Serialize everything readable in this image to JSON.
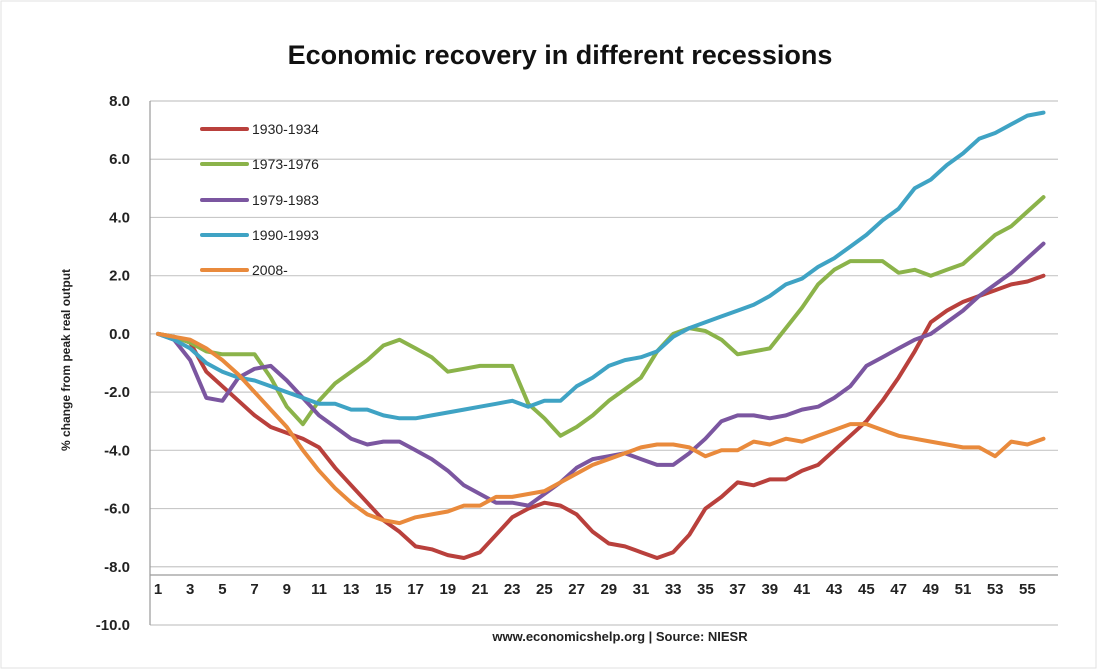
{
  "chart_data": {
    "type": "line",
    "title": "Economic recovery in different recessions",
    "ylabel": "% change from peak real output",
    "source": "www.economicshelp.org | Source: NIESR",
    "ylim": [
      -10,
      8
    ],
    "yticks": [
      8,
      6,
      4,
      2,
      0,
      -2,
      -4,
      -6,
      -8,
      -10
    ],
    "ytick_labels": [
      "8.0",
      "6.0",
      "4.0",
      "2.0",
      "0.0",
      "-2.0",
      "-4.0",
      "-6.0",
      "-8.0",
      "-10.0"
    ],
    "xticks": [
      1,
      3,
      5,
      7,
      9,
      11,
      13,
      15,
      17,
      19,
      21,
      23,
      25,
      27,
      29,
      31,
      33,
      35,
      37,
      39,
      41,
      43,
      45,
      47,
      49,
      51,
      53,
      55
    ],
    "xlim": [
      1,
      56
    ],
    "grid": "horizontal",
    "legend_position": "top-left",
    "series": [
      {
        "name": "1930-1934",
        "color": "#b9403c",
        "x": [
          1,
          2,
          3,
          4,
          5,
          6,
          7,
          8,
          9,
          10,
          11,
          12,
          13,
          14,
          15,
          16,
          17,
          18,
          19,
          20,
          21,
          22,
          23,
          24,
          25,
          26,
          27,
          28,
          29,
          30,
          31,
          32,
          33,
          34,
          35,
          36,
          37,
          38,
          39,
          40,
          41,
          42,
          43,
          44,
          45,
          46,
          47,
          48,
          49,
          50,
          51,
          52,
          53,
          54,
          55,
          56
        ],
        "y": [
          0,
          -0.1,
          -0.3,
          -1.3,
          -1.8,
          -2.3,
          -2.8,
          -3.2,
          -3.4,
          -3.6,
          -3.9,
          -4.6,
          -5.2,
          -5.8,
          -6.4,
          -6.8,
          -7.3,
          -7.4,
          -7.6,
          -7.7,
          -7.5,
          -6.9,
          -6.3,
          -6.0,
          -5.8,
          -5.9,
          -6.2,
          -6.8,
          -7.2,
          -7.3,
          -7.5,
          -7.7,
          -7.5,
          -6.9,
          -6.0,
          -5.6,
          -5.1,
          -5.2,
          -5.0,
          -5.0,
          -4.7,
          -4.5,
          -4.0,
          -3.5,
          -3.0,
          -2.3,
          -1.5,
          -0.6,
          0.4,
          0.8,
          1.1,
          1.3,
          1.5,
          1.7,
          1.8,
          2.0
        ]
      },
      {
        "name": "1973-1976",
        "color": "#8bb34a",
        "x": [
          1,
          2,
          3,
          4,
          5,
          6,
          7,
          8,
          9,
          10,
          11,
          12,
          13,
          14,
          15,
          16,
          17,
          18,
          19,
          20,
          21,
          22,
          23,
          24,
          25,
          26,
          27,
          28,
          29,
          30,
          31,
          32,
          33,
          34,
          35,
          36,
          37,
          38,
          39,
          40,
          41,
          42,
          43,
          44,
          45,
          46,
          47,
          48,
          49,
          50,
          51,
          52,
          53,
          54,
          55,
          56
        ],
        "y": [
          0,
          -0.1,
          -0.3,
          -0.6,
          -0.7,
          -0.7,
          -0.7,
          -1.5,
          -2.5,
          -3.1,
          -2.3,
          -1.7,
          -1.3,
          -0.9,
          -0.4,
          -0.2,
          -0.5,
          -0.8,
          -1.3,
          -1.2,
          -1.1,
          -1.1,
          -1.1,
          -2.4,
          -2.9,
          -3.5,
          -3.2,
          -2.8,
          -2.3,
          -1.9,
          -1.5,
          -0.6,
          0.0,
          0.2,
          0.1,
          -0.2,
          -0.7,
          -0.6,
          -0.5,
          0.2,
          0.9,
          1.7,
          2.2,
          2.5,
          2.5,
          2.5,
          2.1,
          2.2,
          2.0,
          2.2,
          2.4,
          2.9,
          3.4,
          3.7,
          4.2,
          4.7
        ]
      },
      {
        "name": "1979-1983",
        "color": "#7b56a0",
        "x": [
          1,
          2,
          3,
          4,
          5,
          6,
          7,
          8,
          9,
          10,
          11,
          12,
          13,
          14,
          15,
          16,
          17,
          18,
          19,
          20,
          21,
          22,
          23,
          24,
          25,
          26,
          27,
          28,
          29,
          30,
          31,
          32,
          33,
          34,
          35,
          36,
          37,
          38,
          39,
          40,
          41,
          42,
          43,
          44,
          45,
          46,
          47,
          48,
          49,
          50,
          51,
          52,
          53,
          54,
          55,
          56
        ],
        "y": [
          0,
          -0.2,
          -0.9,
          -2.2,
          -2.3,
          -1.5,
          -1.2,
          -1.1,
          -1.6,
          -2.2,
          -2.8,
          -3.2,
          -3.6,
          -3.8,
          -3.7,
          -3.7,
          -4.0,
          -4.3,
          -4.7,
          -5.2,
          -5.5,
          -5.8,
          -5.8,
          -5.9,
          -5.5,
          -5.1,
          -4.6,
          -4.3,
          -4.2,
          -4.1,
          -4.3,
          -4.5,
          -4.5,
          -4.1,
          -3.6,
          -3.0,
          -2.8,
          -2.8,
          -2.9,
          -2.8,
          -2.6,
          -2.5,
          -2.2,
          -1.8,
          -1.1,
          -0.8,
          -0.5,
          -0.2,
          0.0,
          0.4,
          0.8,
          1.3,
          1.7,
          2.1,
          2.6,
          3.1
        ]
      },
      {
        "name": "1990-1993",
        "color": "#3fa3c4",
        "x": [
          1,
          2,
          3,
          4,
          5,
          6,
          7,
          8,
          9,
          10,
          11,
          12,
          13,
          14,
          15,
          16,
          17,
          18,
          19,
          20,
          21,
          22,
          23,
          24,
          25,
          26,
          27,
          28,
          29,
          30,
          31,
          32,
          33,
          34,
          35,
          36,
          37,
          38,
          39,
          40,
          41,
          42,
          43,
          44,
          45,
          46,
          47,
          48,
          49,
          50,
          51,
          52,
          53,
          54,
          55,
          56
        ],
        "y": [
          0,
          -0.2,
          -0.5,
          -1.0,
          -1.3,
          -1.5,
          -1.6,
          -1.8,
          -2.0,
          -2.2,
          -2.4,
          -2.4,
          -2.6,
          -2.6,
          -2.8,
          -2.9,
          -2.9,
          -2.8,
          -2.7,
          -2.6,
          -2.5,
          -2.4,
          -2.3,
          -2.5,
          -2.3,
          -2.3,
          -1.8,
          -1.5,
          -1.1,
          -0.9,
          -0.8,
          -0.6,
          -0.1,
          0.2,
          0.4,
          0.6,
          0.8,
          1.0,
          1.3,
          1.7,
          1.9,
          2.3,
          2.6,
          3.0,
          3.4,
          3.9,
          4.3,
          5.0,
          5.3,
          5.8,
          6.2,
          6.7,
          6.9,
          7.2,
          7.5,
          7.6
        ]
      },
      {
        "name": "2008-",
        "color": "#e98a3c",
        "x": [
          1,
          2,
          3,
          4,
          5,
          6,
          7,
          8,
          9,
          10,
          11,
          12,
          13,
          14,
          15,
          16,
          17,
          18,
          19,
          20,
          21,
          22,
          23,
          24,
          25,
          26,
          27,
          28,
          29,
          30,
          31,
          32,
          33,
          34,
          35,
          36,
          37,
          38,
          39,
          40,
          41,
          42,
          43,
          44,
          45,
          46,
          47,
          48,
          49,
          50,
          51,
          52,
          53,
          54,
          55,
          56
        ],
        "y": [
          0,
          -0.1,
          -0.2,
          -0.5,
          -0.9,
          -1.4,
          -2.0,
          -2.6,
          -3.2,
          -4.0,
          -4.7,
          -5.3,
          -5.8,
          -6.2,
          -6.4,
          -6.5,
          -6.3,
          -6.2,
          -6.1,
          -5.9,
          -5.9,
          -5.6,
          -5.6,
          -5.5,
          -5.4,
          -5.1,
          -4.8,
          -4.5,
          -4.3,
          -4.1,
          -3.9,
          -3.8,
          -3.8,
          -3.9,
          -4.2,
          -4.0,
          -4.0,
          -3.7,
          -3.8,
          -3.6,
          -3.7,
          -3.5,
          -3.3,
          -3.1,
          -3.1,
          -3.3,
          -3.5,
          -3.6,
          -3.7,
          -3.8,
          -3.9,
          -3.9,
          -4.2,
          -3.7,
          -3.8,
          -3.6
        ]
      }
    ]
  }
}
